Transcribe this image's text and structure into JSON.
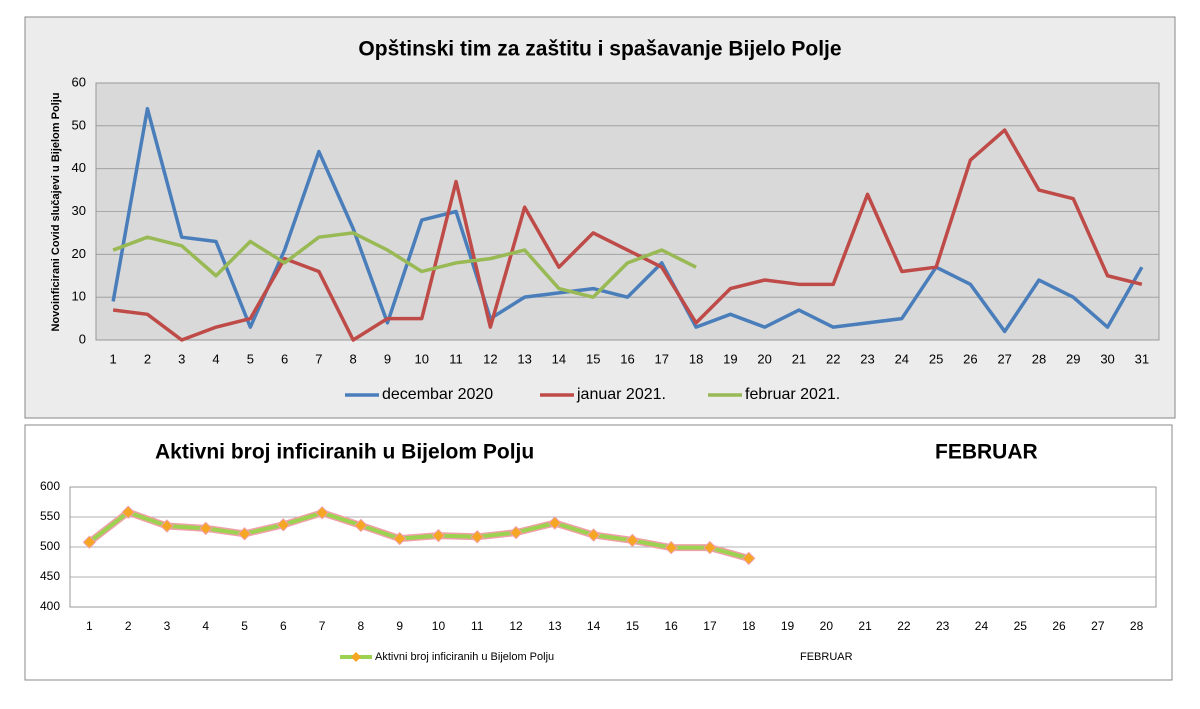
{
  "chart_data": [
    {
      "type": "line",
      "title": "Opštinski tim za zaštitu i spašavanje Bijelo Polje",
      "y_label": "Novoinficirani  Covid  slučajevi u Bijelom Polju",
      "categories": [
        "1",
        "2",
        "3",
        "4",
        "5",
        "6",
        "7",
        "8",
        "9",
        "10",
        "11",
        "12",
        "13",
        "14",
        "15",
        "16",
        "17",
        "18",
        "19",
        "20",
        "21",
        "22",
        "23",
        "24",
        "25",
        "26",
        "27",
        "28",
        "29",
        "30",
        "31"
      ],
      "series": [
        {
          "name": "decembar 2020",
          "color": "#4a7ebb",
          "values": [
            9,
            54,
            24,
            23,
            3,
            21,
            44,
            26,
            4,
            28,
            30,
            5,
            10,
            11,
            12,
            10,
            18,
            3,
            6,
            3,
            7,
            3,
            4,
            5,
            17,
            13,
            2,
            14,
            10,
            3,
            17
          ]
        },
        {
          "name": "januar 2021.",
          "color": "#be4b48",
          "values": [
            7,
            6,
            0,
            3,
            5,
            19,
            16,
            0,
            5,
            5,
            37,
            3,
            31,
            17,
            25,
            21,
            17,
            4,
            12,
            14,
            13,
            13,
            34,
            16,
            17,
            42,
            49,
            35,
            33,
            15,
            13
          ]
        },
        {
          "name": "februar 2021.",
          "color": "#98b954",
          "values": [
            21,
            24,
            22,
            15,
            23,
            18,
            24,
            25,
            21,
            16,
            18,
            19,
            21,
            12,
            10,
            18,
            21,
            17,
            null,
            null,
            null,
            null,
            null,
            null,
            null,
            null,
            null,
            null,
            null,
            null,
            null
          ]
        }
      ],
      "ylim": [
        0,
        60
      ],
      "yticks": [
        0,
        10,
        20,
        30,
        40,
        50,
        60
      ],
      "grid": true,
      "legend": "bottom",
      "plot_bg": "#d9d9d9"
    },
    {
      "type": "line",
      "title": "Aktivni broj inficiranih u Bijelom Polju",
      "subtitle": "FEBRUAR",
      "x_label": "FEBRUAR",
      "categories": [
        "1",
        "2",
        "3",
        "4",
        "5",
        "6",
        "7",
        "8",
        "9",
        "10",
        "11",
        "12",
        "13",
        "14",
        "15",
        "16",
        "17",
        "18",
        "19",
        "20",
        "21",
        "22",
        "23",
        "24",
        "25",
        "26",
        "27",
        "28"
      ],
      "series": [
        {
          "name": "Aktivni broj inficiranih u Bijelom Polju",
          "color": "#9bd24f",
          "marker_color": "#f5a623",
          "outline": "#f0a0a8",
          "values": [
            508,
            558,
            535,
            531,
            522,
            537,
            557,
            536,
            514,
            519,
            517,
            524,
            540,
            520,
            511,
            499,
            499,
            481,
            null,
            null,
            null,
            null,
            null,
            null,
            null,
            null,
            null,
            null
          ]
        }
      ],
      "ylim": [
        400,
        600
      ],
      "yticks": [
        400,
        450,
        500,
        550,
        600
      ],
      "grid": true,
      "legend": "bottom",
      "plot_bg": "#ffffff"
    }
  ]
}
